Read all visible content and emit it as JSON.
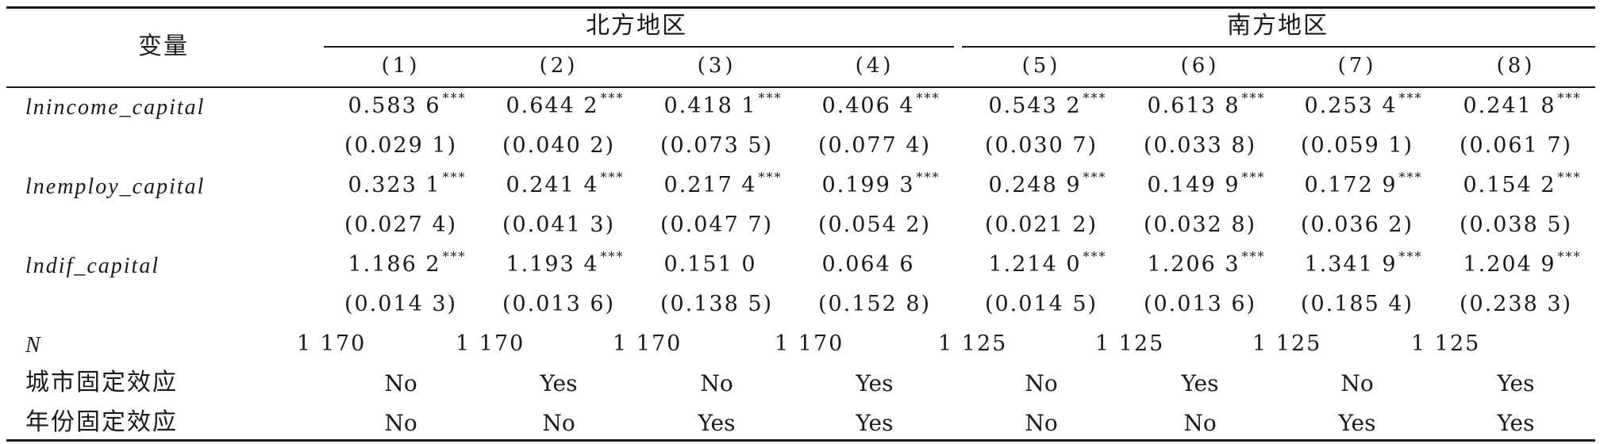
{
  "header": {
    "variable_label": "变量",
    "groups": [
      "北方地区",
      "南方地区"
    ],
    "columns": [
      "(1)",
      "(2)",
      "(3)",
      "(4)",
      "(5)",
      "(6)",
      "(7)",
      "(8)"
    ]
  },
  "rows": [
    {
      "name": "lnincome_capital",
      "coef": [
        "0.583 6",
        "0.644 2",
        "0.418 1",
        "0.406 4",
        "0.543 2",
        "0.613 8",
        "0.253 4",
        "0.241 8"
      ],
      "stars": [
        "***",
        "***",
        "***",
        "***",
        "***",
        "***",
        "***",
        "***"
      ],
      "se": [
        "(0.029 1)",
        "(0.040 2)",
        "(0.073 5)",
        "(0.077 4)",
        "(0.030 7)",
        "(0.033 8)",
        "(0.059 1)",
        "(0.061 7)"
      ]
    },
    {
      "name": "lnemploy_capital",
      "coef": [
        "0.323 1",
        "0.241 4",
        "0.217 4",
        "0.199 3",
        "0.248 9",
        "0.149 9",
        "0.172 9",
        "0.154 2"
      ],
      "stars": [
        "***",
        "***",
        "***",
        "***",
        "***",
        "***",
        "***",
        "***"
      ],
      "se": [
        "(0.027 4)",
        "(0.041 3)",
        "(0.047 7)",
        "(0.054 2)",
        "(0.021 2)",
        "(0.032 8)",
        "(0.036 2)",
        "(0.038 5)"
      ]
    },
    {
      "name": "lndif_capital",
      "coef": [
        "1.186 2",
        "1.193 4",
        "0.151 0",
        "0.064 6",
        "1.214 0",
        "1.206 3",
        "1.341 9",
        "1.204 9"
      ],
      "stars": [
        "***",
        "***",
        "",
        "",
        "***",
        "***",
        "***",
        "***"
      ],
      "se": [
        "(0.014 3)",
        "(0.013 6)",
        "(0.138 5)",
        "(0.152 8)",
        "(0.014 5)",
        "(0.013 6)",
        "(0.185 4)",
        "(0.238 3)"
      ]
    }
  ],
  "n_row": {
    "label": "N",
    "values": [
      "1 170",
      "1 170",
      "1 170",
      "1 170",
      "1 125",
      "1 125",
      "1 125",
      "1 125"
    ]
  },
  "fe_rows": [
    {
      "label": "城市固定效应",
      "values": [
        "No",
        "Yes",
        "No",
        "Yes",
        "No",
        "Yes",
        "No",
        "Yes"
      ]
    },
    {
      "label": "年份固定效应",
      "values": [
        "No",
        "No",
        "Yes",
        "Yes",
        "No",
        "No",
        "Yes",
        "Yes"
      ]
    }
  ]
}
